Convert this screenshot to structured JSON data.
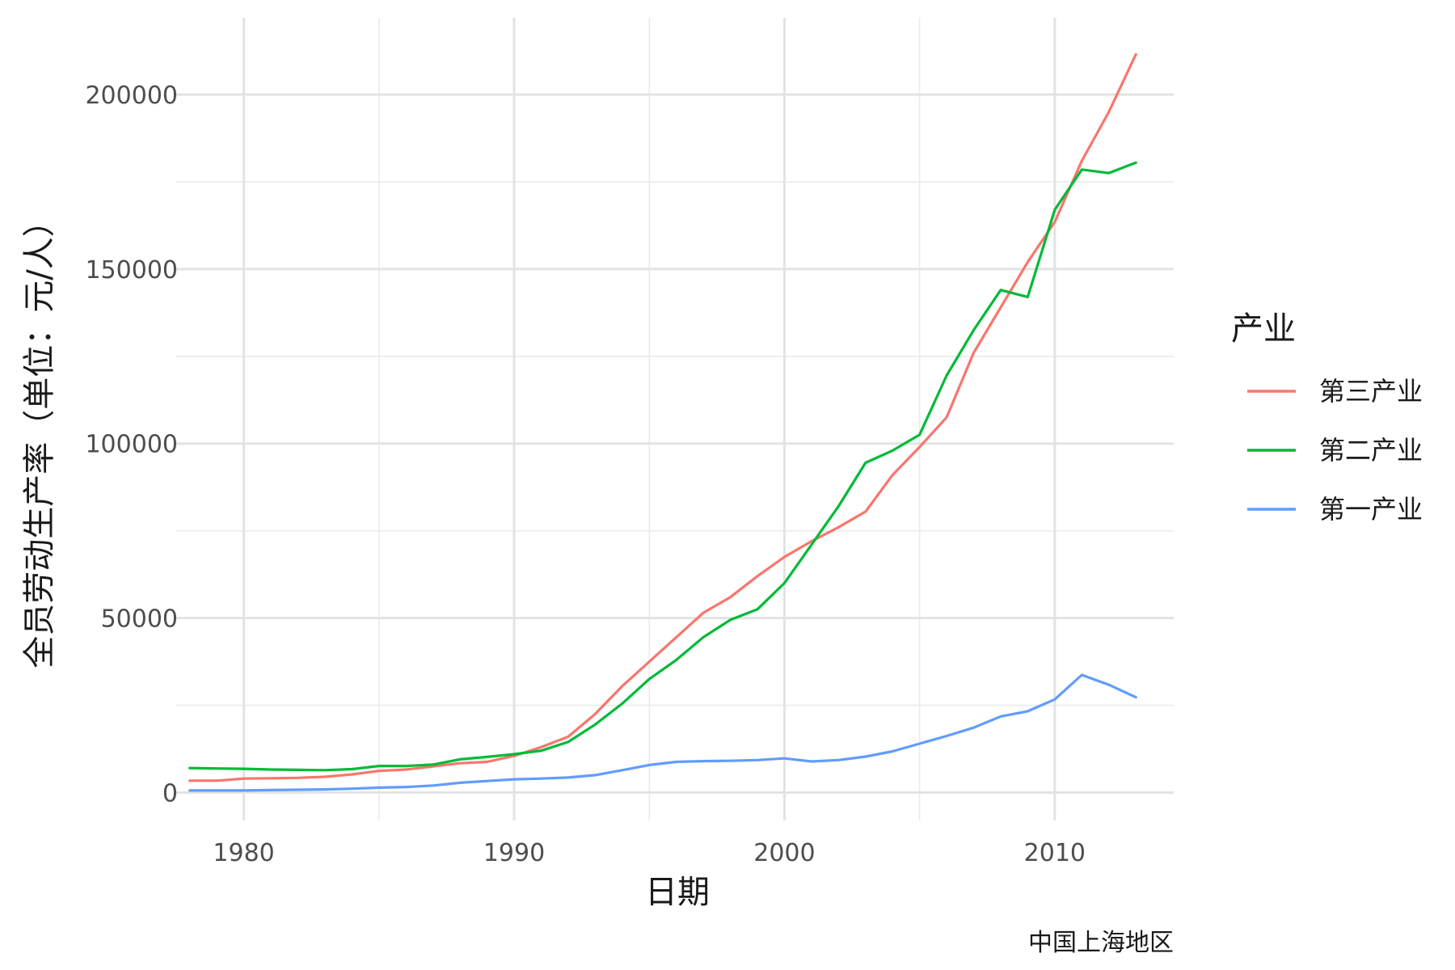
{
  "chart_data": {
    "type": "line",
    "xlabel": "日期",
    "ylabel": "全员劳动生产率（单位：元/人）",
    "caption": "中国上海地区",
    "legend_title": "产业",
    "legend_position": "right",
    "grid": true,
    "xlim": [
      1977.5,
      2014.4
    ],
    "ylim": [
      -8000,
      222000
    ],
    "x_ticks": [
      1980,
      1990,
      2000,
      2010
    ],
    "x_tick_labels": [
      "1980",
      "1990",
      "2000",
      "2010"
    ],
    "y_ticks": [
      0,
      50000,
      100000,
      150000,
      200000
    ],
    "y_tick_labels": [
      "0",
      "50000",
      "100000",
      "150000",
      "200000"
    ],
    "x": [
      1978,
      1979,
      1980,
      1981,
      1982,
      1983,
      1984,
      1985,
      1986,
      1987,
      1988,
      1989,
      1990,
      1991,
      1992,
      1993,
      1994,
      1995,
      1996,
      1997,
      1998,
      1999,
      2000,
      2001,
      2002,
      2003,
      2004,
      2005,
      2006,
      2007,
      2008,
      2009,
      2010,
      2011,
      2012,
      2013
    ],
    "series": [
      {
        "name": "第三产业",
        "color": "#F8766D",
        "values": [
          3400,
          3400,
          4000,
          4100,
          4200,
          4500,
          5200,
          6200,
          6600,
          7500,
          8400,
          8800,
          10500,
          13000,
          16000,
          22500,
          30500,
          37500,
          44500,
          51500,
          56000,
          62000,
          67500,
          72000,
          76000,
          80500,
          91000,
          99000,
          107500,
          126000,
          139000,
          152000,
          163500,
          181000,
          195000,
          211500
        ]
      },
      {
        "name": "第二产业",
        "color": "#00BA38",
        "values": [
          7000,
          6900,
          6800,
          6600,
          6500,
          6400,
          6700,
          7600,
          7600,
          8000,
          9500,
          10200,
          11000,
          12000,
          14500,
          19500,
          25500,
          32500,
          38000,
          44500,
          49500,
          52500,
          60000,
          71000,
          82000,
          94500,
          98000,
          102500,
          119500,
          132500,
          144000,
          142000,
          167000,
          178500,
          177500,
          180500
        ]
      },
      {
        "name": "第一产业",
        "color": "#619CFF",
        "values": [
          600,
          600,
          600,
          700,
          800,
          900,
          1100,
          1400,
          1600,
          2000,
          2800,
          3300,
          3800,
          4000,
          4300,
          5000,
          6400,
          7900,
          8800,
          9000,
          9100,
          9300,
          9800,
          8900,
          9300,
          10300,
          11800,
          14000,
          16200,
          18600,
          21800,
          23300,
          26700,
          33700,
          30900,
          27300
        ]
      }
    ]
  }
}
